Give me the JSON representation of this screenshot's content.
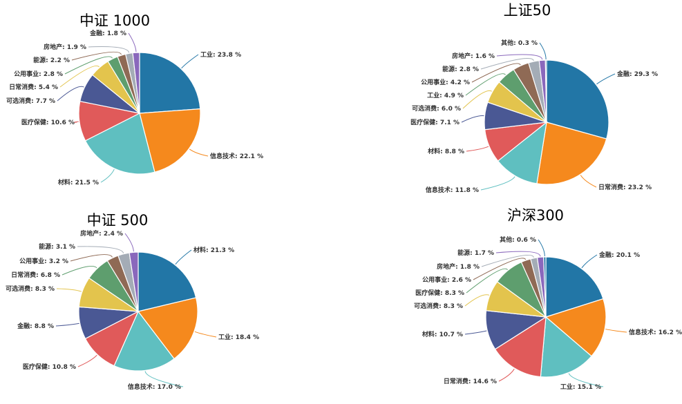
{
  "colors": [
    "#2276a6",
    "#f5891d",
    "#5fbfc0",
    "#e05a5a",
    "#4a5894",
    "#e3c44d",
    "#5e9e6e",
    "#8f6a55",
    "#a4acb6",
    "#8a68bc"
  ],
  "chart_data": [
    {
      "type": "pie",
      "title": "中证 1000",
      "slices": [
        {
          "label": "工业",
          "value": 23.8,
          "text": "工业: 23.8 %"
        },
        {
          "label": "信息技术",
          "value": 22.1,
          "text": "信息技术: 22.1 %"
        },
        {
          "label": "材料",
          "value": 21.5,
          "text": "材料: 21.5 %"
        },
        {
          "label": "医疗保健",
          "value": 10.6,
          "text": "医疗保健: 10.6 %"
        },
        {
          "label": "可选消费",
          "value": 7.7,
          "text": "可选消费: 7.7 %"
        },
        {
          "label": "日常消费",
          "value": 5.4,
          "text": "日常消费: 5.4 %"
        },
        {
          "label": "公用事业",
          "value": 2.8,
          "text": "公用事业: 2.8 %"
        },
        {
          "label": "能源",
          "value": 2.2,
          "text": "能源: 2.2 %"
        },
        {
          "label": "房地产",
          "value": 1.9,
          "text": "房地产: 1.9 %"
        },
        {
          "label": "金融",
          "value": 1.8,
          "text": "金融: 1.8 %"
        }
      ]
    },
    {
      "type": "pie",
      "title": "上证50",
      "slices": [
        {
          "label": "金融",
          "value": 29.3,
          "text": "金融: 29.3 %"
        },
        {
          "label": "日常消费",
          "value": 23.2,
          "text": "日常消费: 23.2 %"
        },
        {
          "label": "信息技术",
          "value": 11.8,
          "text": "信息技术: 11.8 %"
        },
        {
          "label": "材料",
          "value": 8.8,
          "text": "材料: 8.8 %"
        },
        {
          "label": "医疗保健",
          "value": 7.1,
          "text": "医疗保健: 7.1 %"
        },
        {
          "label": "可选消费",
          "value": 6.0,
          "text": "可选消费: 6.0 %"
        },
        {
          "label": "工业",
          "value": 4.9,
          "text": "工业: 4.9 %"
        },
        {
          "label": "公用事业",
          "value": 4.2,
          "text": "公用事业: 4.2 %"
        },
        {
          "label": "能源",
          "value": 2.8,
          "text": "能源: 2.8 %"
        },
        {
          "label": "房地产",
          "value": 1.6,
          "text": "房地产: 1.6 %"
        },
        {
          "label": "其他",
          "value": 0.3,
          "text": "其他: 0.3 %"
        }
      ]
    },
    {
      "type": "pie",
      "title": "中证 500",
      "slices": [
        {
          "label": "材料",
          "value": 21.3,
          "text": "材料: 21.3 %"
        },
        {
          "label": "工业",
          "value": 18.4,
          "text": "工业: 18.4 %"
        },
        {
          "label": "信息技术",
          "value": 17.0,
          "text": "信息技术: 17.0 %"
        },
        {
          "label": "医疗保健",
          "value": 10.8,
          "text": "医疗保健: 10.8 %"
        },
        {
          "label": "金融",
          "value": 8.8,
          "text": "金融: 8.8 %"
        },
        {
          "label": "可选消费",
          "value": 8.3,
          "text": "可选消费: 8.3 %"
        },
        {
          "label": "日常消费",
          "value": 6.8,
          "text": "日常消费: 6.8 %"
        },
        {
          "label": "公用事业",
          "value": 3.2,
          "text": "公用事业: 3.2 %"
        },
        {
          "label": "能源",
          "value": 3.1,
          "text": "能源: 3.1 %"
        },
        {
          "label": "房地产",
          "value": 2.4,
          "text": "房地产: 2.4 %"
        }
      ]
    },
    {
      "type": "pie",
      "title": "沪深300",
      "slices": [
        {
          "label": "金融",
          "value": 20.1,
          "text": "金融: 20.1 %"
        },
        {
          "label": "信息技术",
          "value": 16.2,
          "text": "信息技术: 16.2 %"
        },
        {
          "label": "工业",
          "value": 15.1,
          "text": "工业: 15.1 %"
        },
        {
          "label": "日常消费",
          "value": 14.6,
          "text": "日常消费: 14.6 %"
        },
        {
          "label": "材料",
          "value": 10.7,
          "text": "材料: 10.7 %"
        },
        {
          "label": "可选消费",
          "value": 8.3,
          "text": "可选消费: 8.3 %"
        },
        {
          "label": "医疗保健",
          "value": 8.3,
          "text": "医疗保健: 8.3 %"
        },
        {
          "label": "公用事业",
          "value": 2.6,
          "text": "公用事业: 2.6 %"
        },
        {
          "label": "房地产",
          "value": 1.8,
          "text": "房地产: 1.8 %"
        },
        {
          "label": "能源",
          "value": 1.7,
          "text": "能源: 1.7 %"
        },
        {
          "label": "其他",
          "value": 0.6,
          "text": "其他: 0.6 %"
        }
      ]
    }
  ]
}
